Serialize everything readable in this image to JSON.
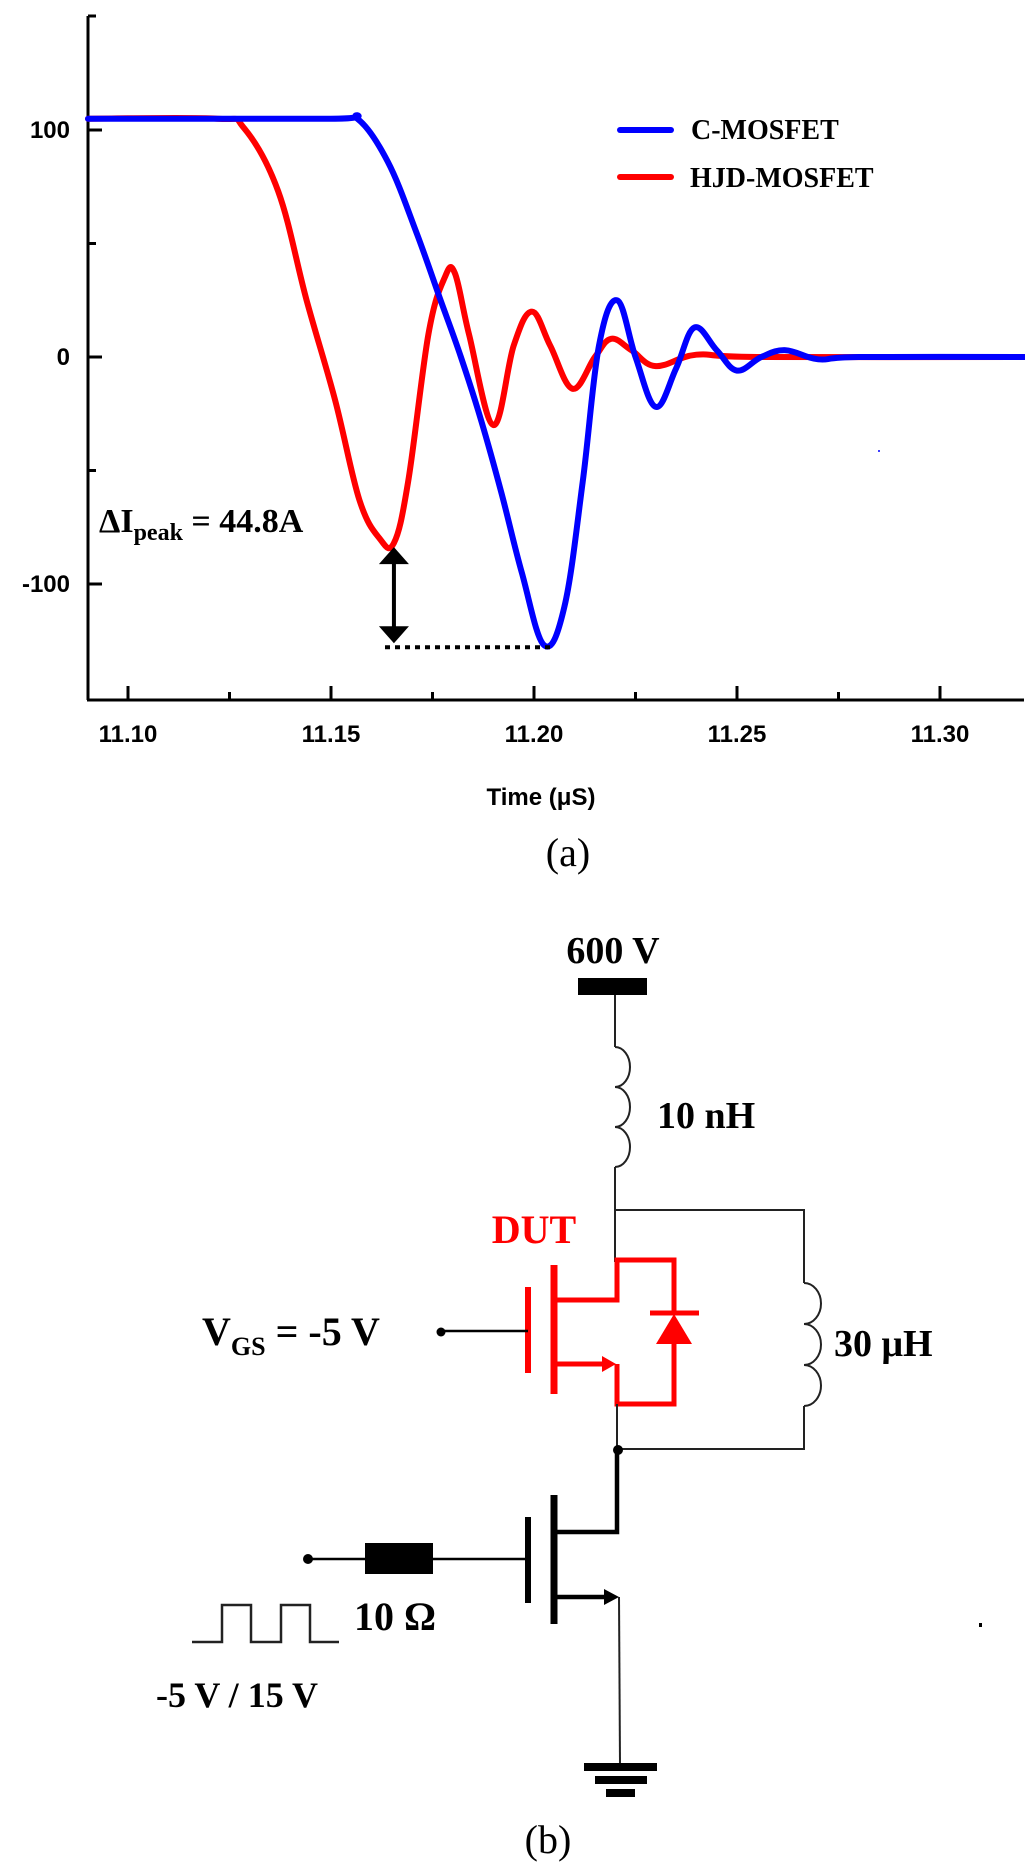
{
  "figure": {
    "panel_a_caption": "(a)",
    "panel_b_caption": "(b)"
  },
  "chart_data": {
    "type": "line",
    "title": "",
    "xlabel": "Time (μS)",
    "ylabel": "",
    "xlim": [
      11.09,
      11.322
    ],
    "ylim": [
      -152,
      158
    ],
    "x_ticks": [
      11.1,
      11.15,
      11.2,
      11.25,
      11.3
    ],
    "x_tick_labels": [
      "11.10",
      "11.15",
      "11.20",
      "11.25",
      "11.30"
    ],
    "x_minor_ticks": [
      11.125,
      11.175,
      11.225,
      11.275
    ],
    "y_ticks": [
      100,
      0,
      -100
    ],
    "y_tick_labels": [
      "100",
      "0",
      "-100"
    ],
    "y_minor_ticks": [
      50,
      -50
    ],
    "grid": false,
    "legend_position": "upper right",
    "series": [
      {
        "name": "C-MOSFET",
        "color": "#0000ff",
        "x": [
          11.09,
          11.15,
          11.1565,
          11.164,
          11.171,
          11.177,
          11.182,
          11.187,
          11.192,
          11.197,
          11.2025,
          11.2075,
          11.212,
          11.216,
          11.2205,
          11.225,
          11.23,
          11.235,
          11.2395,
          11.245,
          11.25,
          11.256,
          11.262,
          11.27,
          11.28,
          11.322
        ],
        "y": [
          105,
          105,
          105,
          86,
          55,
          25,
          0,
          -28,
          -60,
          -95,
          -127,
          -110,
          -55,
          5,
          25,
          0,
          -22,
          -5,
          13,
          3,
          -6,
          0,
          3,
          -1,
          0,
          0
        ]
      },
      {
        "name": "HJD-MOSFET",
        "color": "#ff0000",
        "x": [
          11.09,
          11.122,
          11.1285,
          11.137,
          11.144,
          11.151,
          11.157,
          11.162,
          11.1655,
          11.169,
          11.174,
          11.178,
          11.1805,
          11.184,
          11.19,
          11.195,
          11.1995,
          11.204,
          11.2095,
          11.215,
          11.219,
          11.224,
          11.23,
          11.24,
          11.255,
          11.322
        ],
        "y": [
          105,
          105,
          101,
          73,
          25,
          -19,
          -63,
          -80,
          -82,
          -55,
          10,
          35,
          37,
          10,
          -30,
          5,
          20,
          5,
          -14,
          0,
          8,
          3,
          -4,
          1,
          0,
          0
        ]
      }
    ],
    "annotations": [
      {
        "text": "ΔI_peak = 44.8A",
        "main": "ΔI",
        "subscript": "peak",
        "value_text": " = 44.8A",
        "arrow_x": 11.1655,
        "arrow_from": -82,
        "arrow_to": -127,
        "dotted_line_y": -127
      }
    ]
  },
  "circuit": {
    "supply_label": "600 V",
    "stray_inductor_label": "10 nH",
    "load_inductor_label": "30 μH",
    "dut_label": "DUT",
    "vgs_label_main": "V",
    "vgs_label_sub": "GS",
    "vgs_label_value": " = -5 V",
    "gate_resistor_label": "10 Ω",
    "gate_pulse_label": "-5 V / 15 V",
    "dut_color": "#ff0000"
  }
}
